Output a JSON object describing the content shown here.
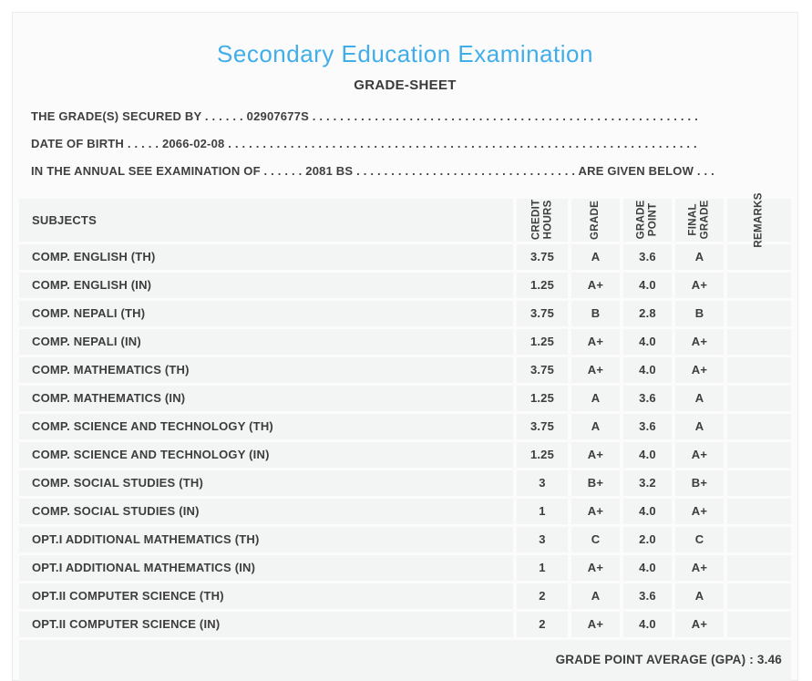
{
  "header": {
    "title": "Secondary Education Examination",
    "subtitle": "GRADE-SHEET"
  },
  "info": {
    "grades_secured_by": "THE GRADE(S) SECURED BY . . . . . . 02907677S . . . . . . . . . . . . . . . . . . . . . . . . . . . . . . . . . . . . . . . . . . . . . . . . . . . . . . . .",
    "date_of_birth": "DATE OF BIRTH . . . . . 2066-02-08 . . . . . . . . . . . . . . . . . . . . . . . . . . . . . . . . . . . . . . . . . . . . . . . . . . . . . . . . . . . . . . . . . . . .",
    "examination_of": "IN THE ANNUAL SEE EXAMINATION OF . . . . . . 2081 BS . . . . . . . . . . . . . . . . . . . . . . . . . . . . . . . . ARE GIVEN BELOW . . ."
  },
  "table": {
    "headers": [
      {
        "label": "SUBJECTS"
      },
      {
        "label": "CREDIT\nHOURS"
      },
      {
        "label": "GRADE"
      },
      {
        "label": "GRADE\nPOINT"
      },
      {
        "label": "FINAL\nGRADE"
      },
      {
        "label": "REMARKS"
      }
    ],
    "rows": [
      [
        "COMP. ENGLISH (TH)",
        "3.75",
        "A",
        "3.6",
        "A",
        ""
      ],
      [
        "COMP. ENGLISH (IN)",
        "1.25",
        "A+",
        "4.0",
        "A+",
        ""
      ],
      [
        "COMP. NEPALI (TH)",
        "3.75",
        "B",
        "2.8",
        "B",
        ""
      ],
      [
        "COMP. NEPALI (IN)",
        "1.25",
        "A+",
        "4.0",
        "A+",
        ""
      ],
      [
        "COMP. MATHEMATICS (TH)",
        "3.75",
        "A+",
        "4.0",
        "A+",
        ""
      ],
      [
        "COMP. MATHEMATICS (IN)",
        "1.25",
        "A",
        "3.6",
        "A",
        ""
      ],
      [
        "COMP. SCIENCE AND TECHNOLOGY (TH)",
        "3.75",
        "A",
        "3.6",
        "A",
        ""
      ],
      [
        "COMP. SCIENCE AND TECHNOLOGY (IN)",
        "1.25",
        "A+",
        "4.0",
        "A+",
        ""
      ],
      [
        "COMP. SOCIAL STUDIES (TH)",
        "3",
        "B+",
        "3.2",
        "B+",
        ""
      ],
      [
        "COMP. SOCIAL STUDIES (IN)",
        "1",
        "A+",
        "4.0",
        "A+",
        ""
      ],
      [
        "OPT.I ADDITIONAL MATHEMATICS (TH)",
        "3",
        "C",
        "2.0",
        "C",
        ""
      ],
      [
        "OPT.I ADDITIONAL MATHEMATICS (IN)",
        "1",
        "A+",
        "4.0",
        "A+",
        ""
      ],
      [
        "OPT.II COMPUTER SCIENCE (TH)",
        "2",
        "A",
        "3.6",
        "A",
        ""
      ],
      [
        "OPT.II COMPUTER SCIENCE (IN)",
        "2",
        "A+",
        "4.0",
        "A+",
        ""
      ]
    ]
  },
  "footer": {
    "gpa_text": "GRADE POINT AVERAGE (GPA) : 3.46"
  }
}
